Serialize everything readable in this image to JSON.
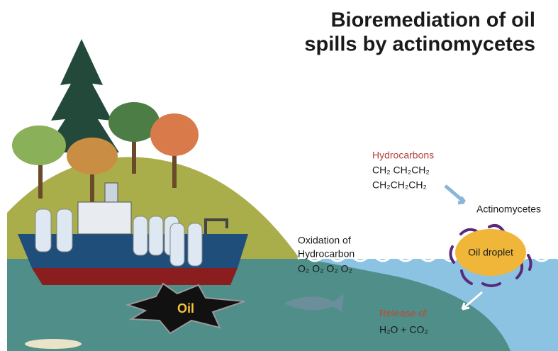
{
  "title": {
    "lines": [
      "Bioremediation of oil",
      "spills by actinomycetes"
    ]
  },
  "labels": {
    "hydrocarbons": "Hydrocarbons",
    "formula_1": "CH₂ CH₂CH₂",
    "formula_2": "CH₂CH₂CH₂",
    "actinomycetes": "Actinomycetes",
    "oil_droplet": "Oil droplet",
    "oxidation": [
      "Oxidation of",
      "Hydrocarbon"
    ],
    "oxygen": "O₂ O₂ O₂ O₂",
    "oil": "Oil",
    "release": "Release of",
    "products": "H₂O + CO₂"
  }
}
